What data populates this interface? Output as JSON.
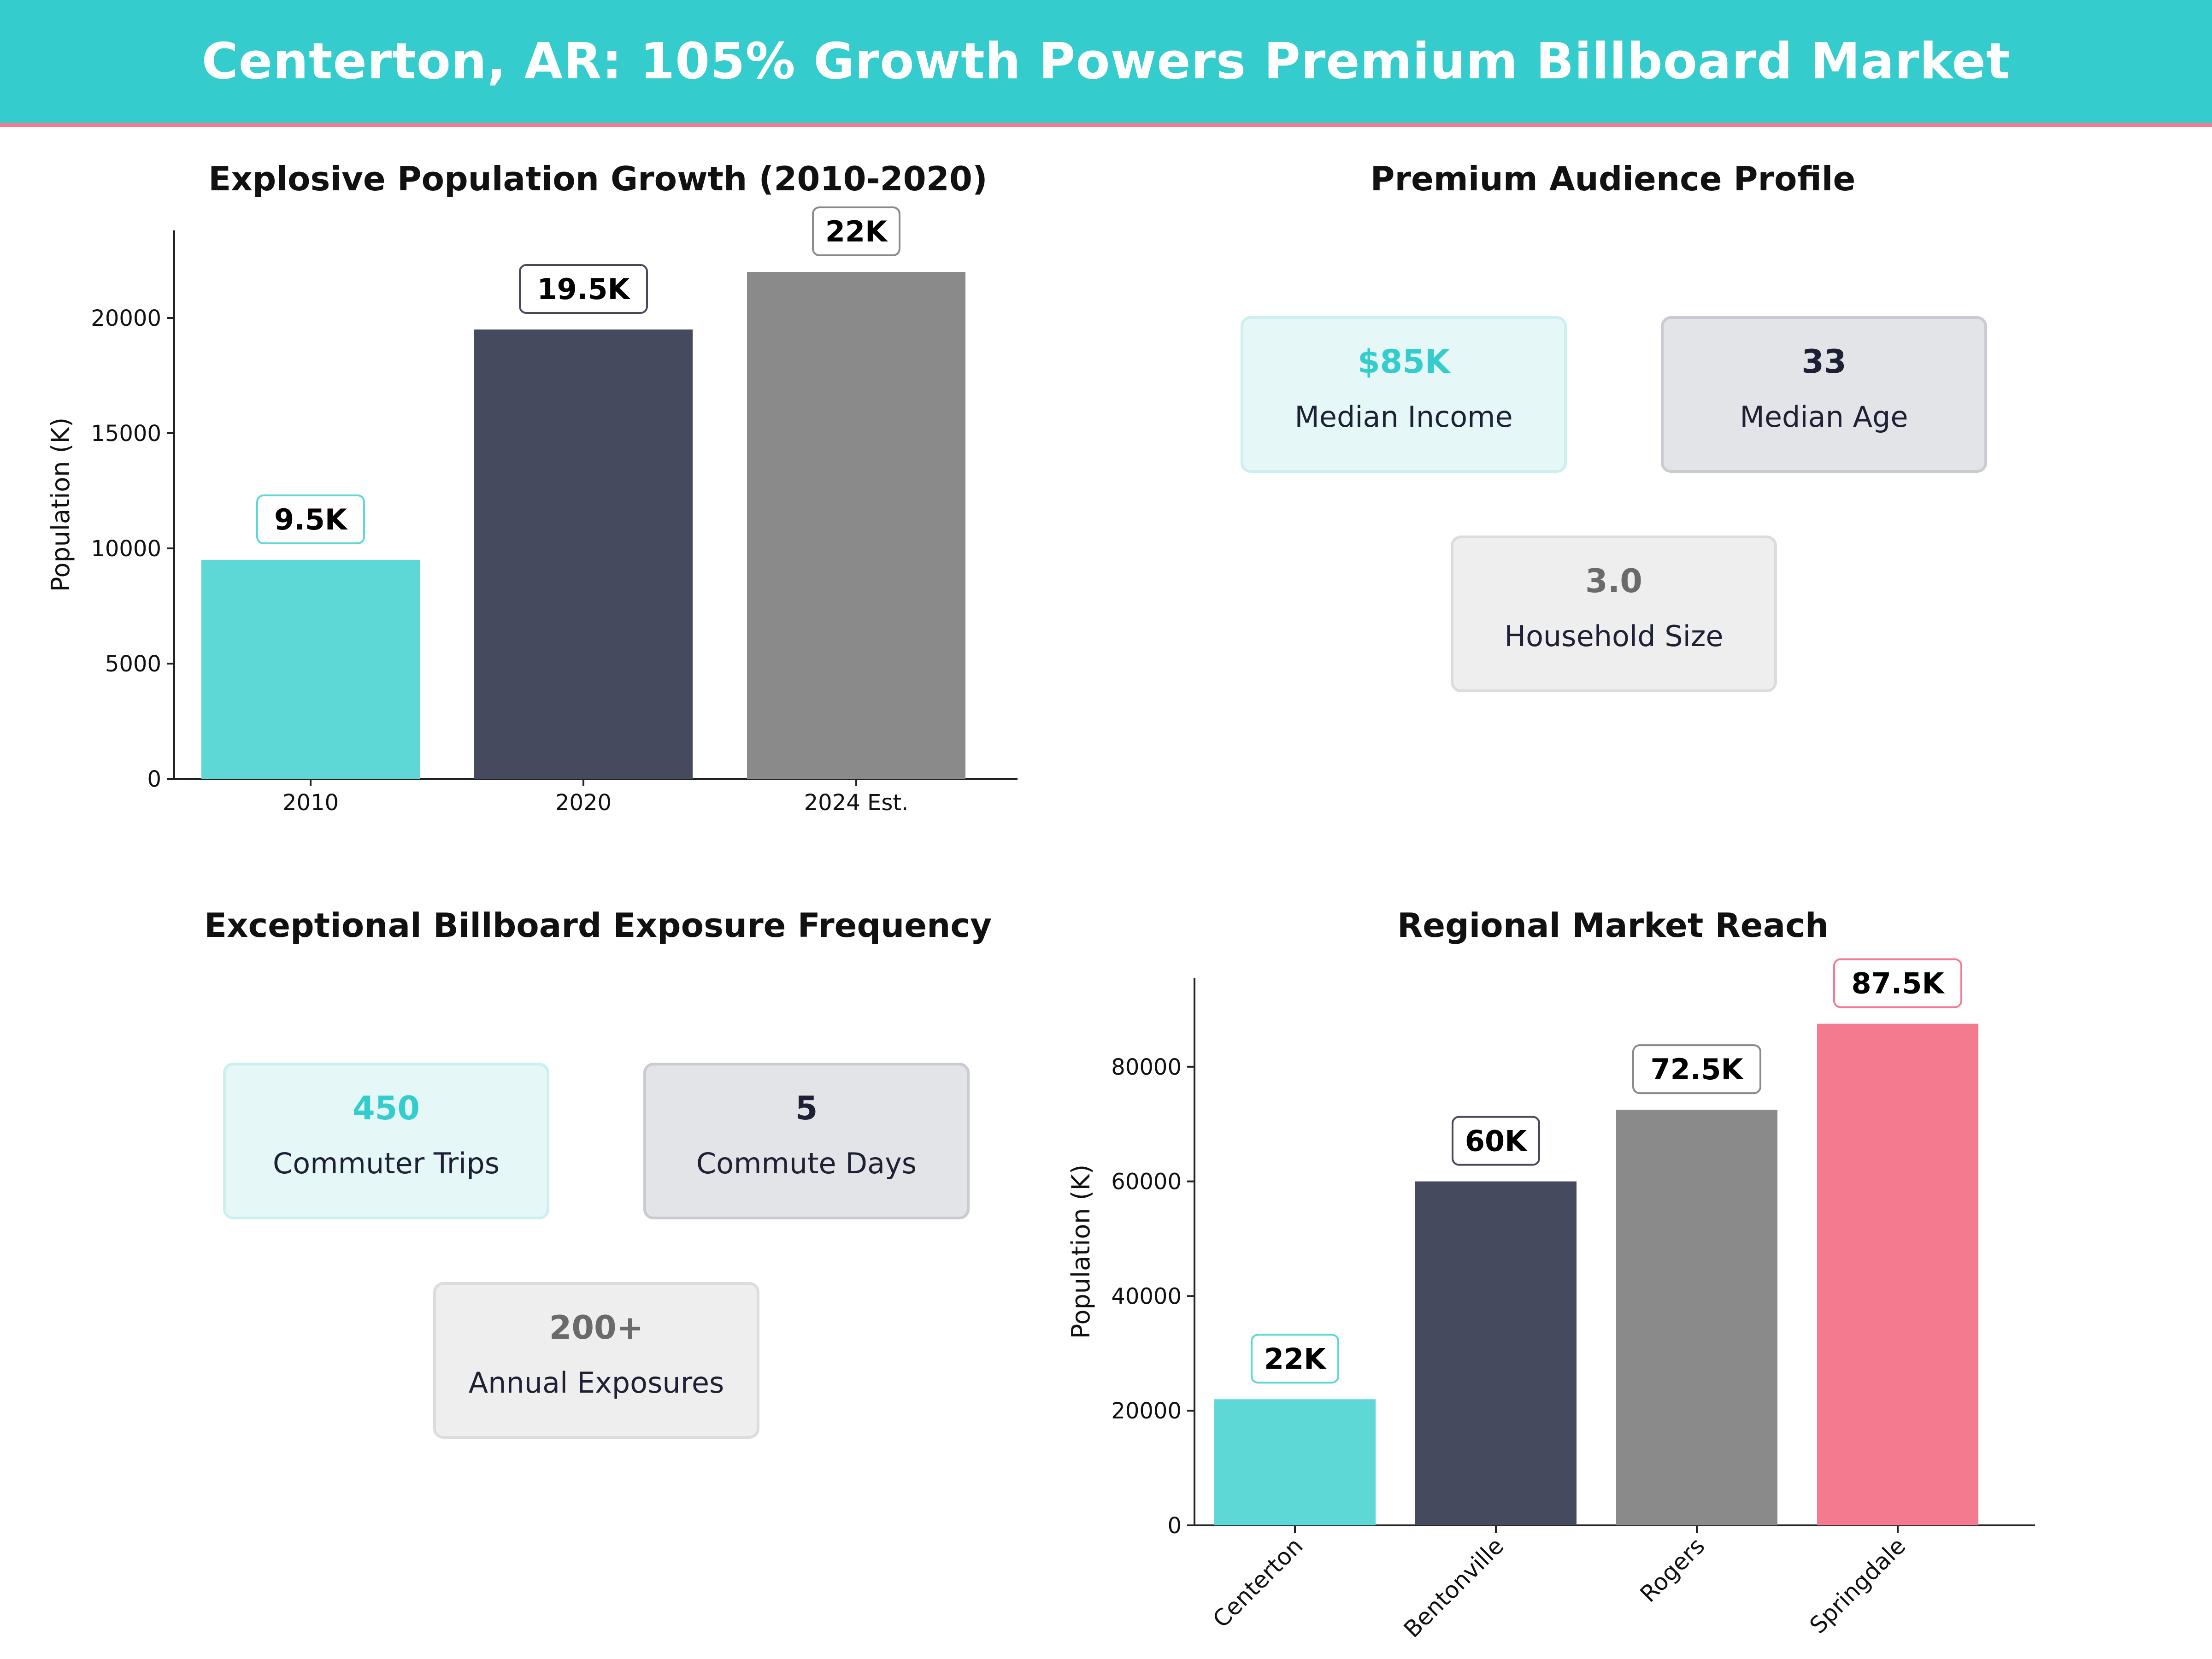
{
  "header": {
    "title": "Centerton, AR: 105% Growth Powers Premium Billboard Market"
  },
  "colors": {
    "teal": "#5dd8d6",
    "navy": "#464a5f",
    "gray": "#8a8a8a",
    "pink": "#f47b8f",
    "teal_text": "#34cccc",
    "navy_text": "#1e2135",
    "gray_text": "#6a6a6a"
  },
  "panels": {
    "population_growth": {
      "title": "Explosive Population Growth (2010-2020)"
    },
    "audience_profile": {
      "title": "Premium Audience Profile",
      "cards": [
        {
          "value": "$85K",
          "label": "Median Income"
        },
        {
          "value": "33",
          "label": "Median Age"
        },
        {
          "value": "3.0",
          "label": "Household Size"
        }
      ]
    },
    "exposure_frequency": {
      "title": "Exceptional Billboard Exposure Frequency",
      "cards": [
        {
          "value": "450",
          "label": "Commuter Trips"
        },
        {
          "value": "5",
          "label": "Commute Days"
        },
        {
          "value": "200+",
          "label": "Annual Exposures"
        }
      ]
    },
    "regional_reach": {
      "title": "Regional Market Reach"
    }
  },
  "chart_data": [
    {
      "type": "bar",
      "title": "Explosive Population Growth (2010-2020)",
      "categories": [
        "2010",
        "2020",
        "2024 Est."
      ],
      "values": [
        9500,
        19500,
        22000
      ],
      "data_labels": [
        "9.5K",
        "19.5K",
        "22K"
      ],
      "bar_colors": [
        "#5dd8d6",
        "#464a5f",
        "#8a8a8a"
      ],
      "xlabel": "",
      "ylabel": "Population (K)",
      "ylim": [
        0,
        23800
      ],
      "yticks": [
        0,
        5000,
        10000,
        15000,
        20000
      ],
      "ytick_labels": [
        "0",
        "5000",
        "10000",
        "15000",
        "20000"
      ],
      "grid": false
    },
    {
      "type": "bar",
      "title": "Regional Market Reach",
      "categories": [
        "Centerton",
        "Bentonville",
        "Rogers",
        "Springdale"
      ],
      "values": [
        22000,
        60000,
        72500,
        87500
      ],
      "data_labels": [
        "22K",
        "60K",
        "72.5K",
        "87.5K"
      ],
      "bar_colors": [
        "#5dd8d6",
        "#464a5f",
        "#8a8a8a",
        "#f47b8f"
      ],
      "xlabel": "",
      "ylabel": "Population (K)",
      "ylim": [
        0,
        95500
      ],
      "yticks": [
        0,
        20000,
        40000,
        60000,
        80000
      ],
      "ytick_labels": [
        "0",
        "20000",
        "40000",
        "60000",
        "80000"
      ],
      "grid": false
    }
  ]
}
